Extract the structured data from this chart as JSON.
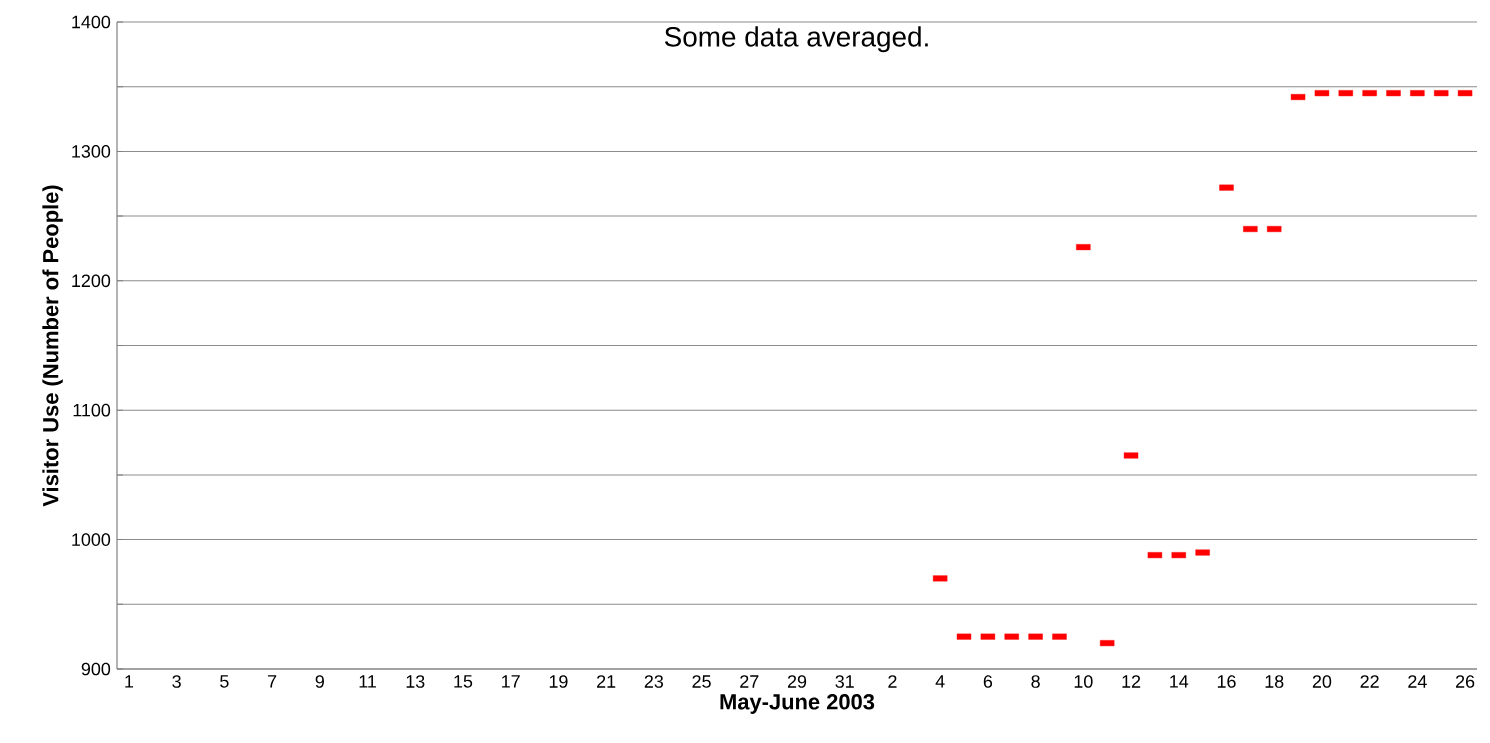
{
  "chart_data": {
    "type": "scatter",
    "title": "Some data averaged.",
    "xlabel": "May-June 2003",
    "ylabel": "Visitor Use (Number of People)",
    "categories": [
      "1",
      null,
      "3",
      null,
      "5",
      null,
      "7",
      null,
      "9",
      null,
      "11",
      null,
      "13",
      null,
      "15",
      null,
      "17",
      null,
      "19",
      null,
      "21",
      null,
      "23",
      null,
      "25",
      null,
      "27",
      null,
      "29",
      null,
      "31",
      null,
      "2",
      null,
      "4",
      null,
      "6",
      null,
      "8",
      null,
      "10",
      null,
      "12",
      null,
      "14",
      null,
      "16",
      null,
      "18",
      null,
      "20",
      null,
      "22",
      null,
      "24",
      null,
      "26"
    ],
    "series": [
      {
        "color": "#ff0000",
        "values": [
          null,
          null,
          null,
          null,
          null,
          null,
          null,
          null,
          null,
          null,
          null,
          null,
          null,
          null,
          null,
          null,
          null,
          null,
          null,
          null,
          null,
          null,
          null,
          null,
          null,
          null,
          null,
          null,
          null,
          null,
          null,
          null,
          null,
          null,
          970,
          925,
          925,
          925,
          925,
          925,
          1226,
          920,
          1065,
          988,
          988,
          990,
          1272,
          1240,
          1240,
          1342,
          1345,
          1345,
          1345,
          1345,
          1345,
          1345,
          1345
        ]
      }
    ],
    "ylim": [
      900,
      1400
    ],
    "yticks": [
      900,
      {
        "value": 950,
        "label": null
      },
      1000,
      {
        "value": 1050,
        "label": null
      },
      1100,
      {
        "value": 1150,
        "label": null
      },
      1200,
      {
        "value": 1250,
        "label": null
      },
      1300,
      {
        "value": 1350,
        "label": null
      },
      1400
    ],
    "grid": "y",
    "legend": false
  }
}
